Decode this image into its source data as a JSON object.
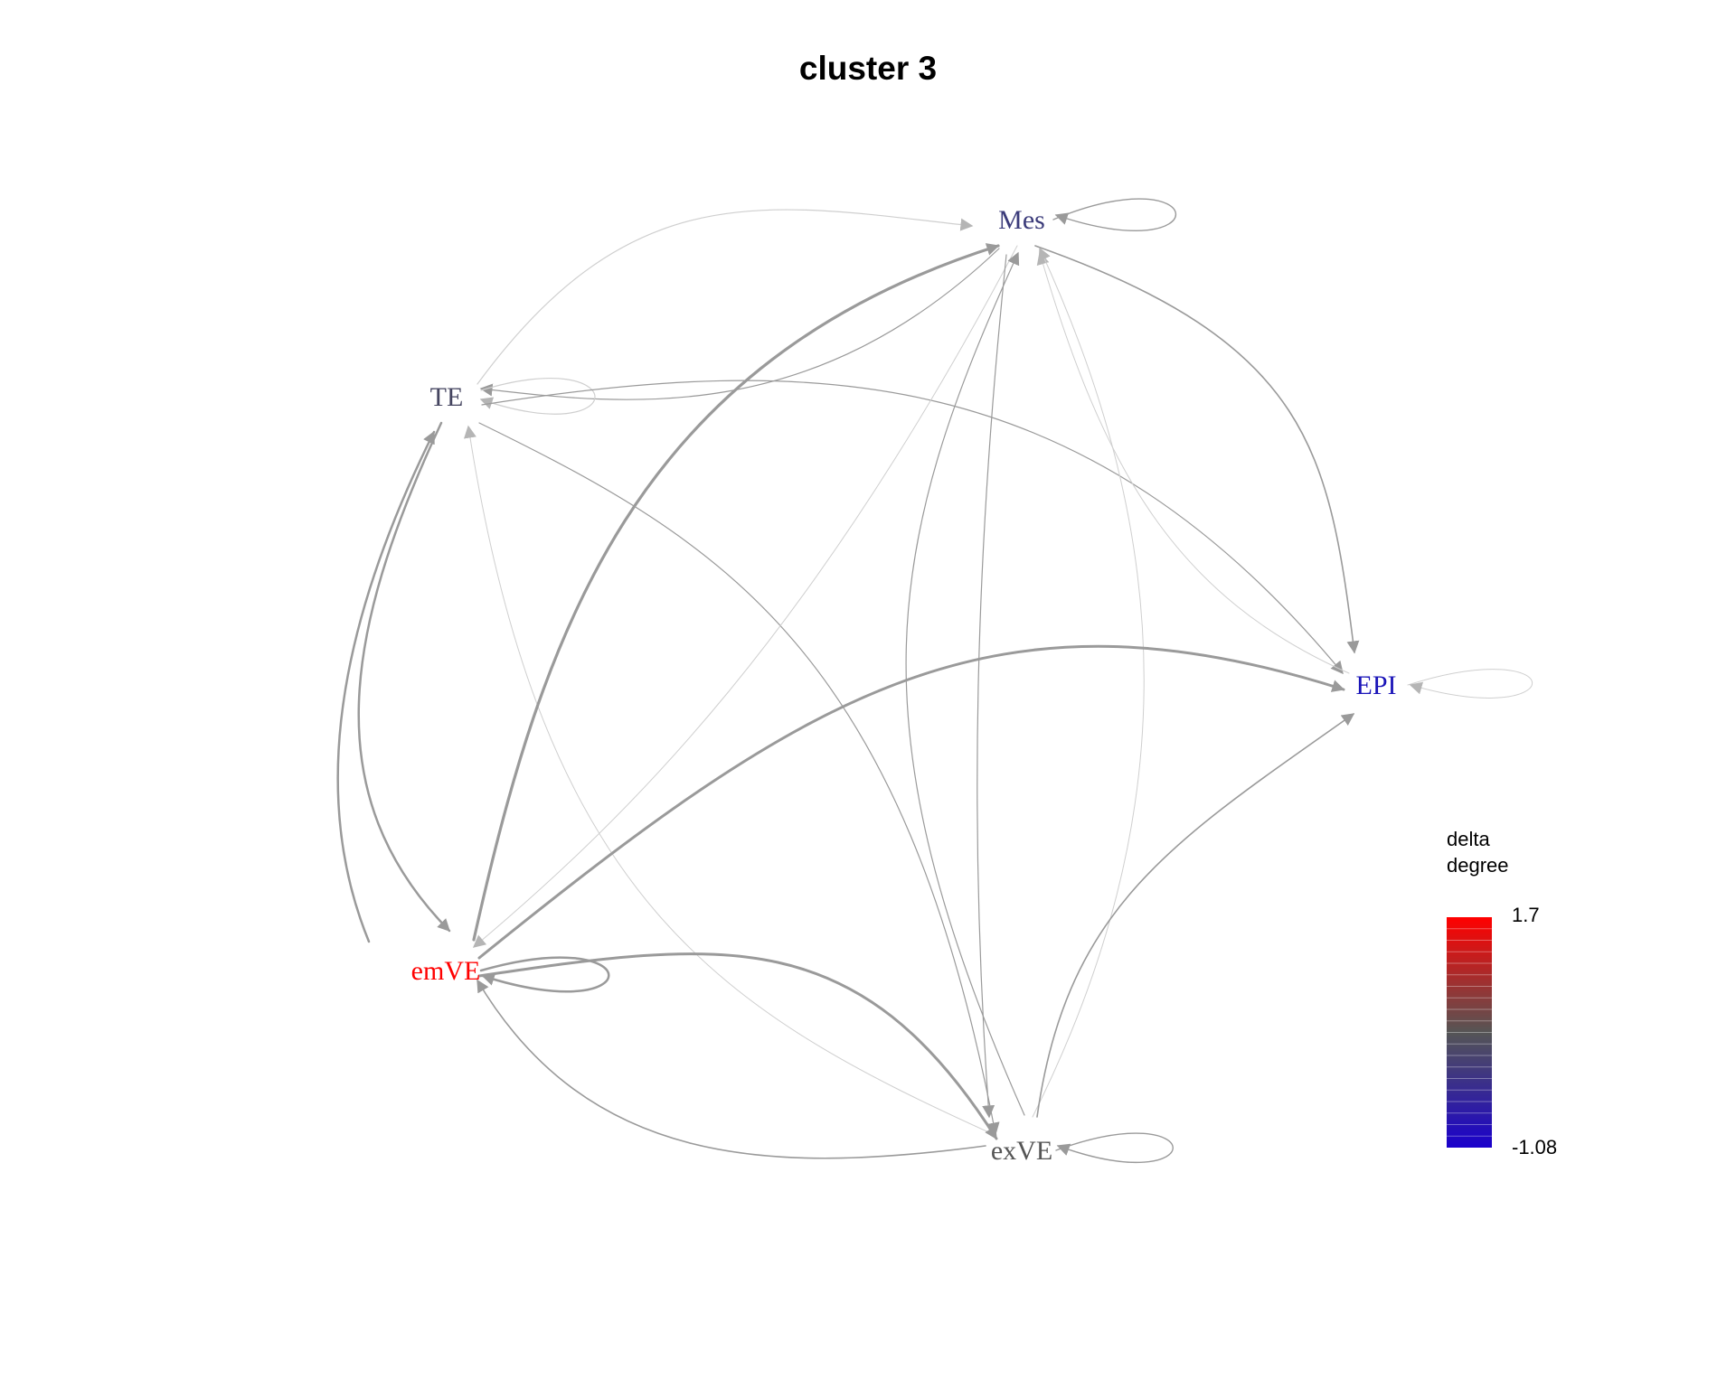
{
  "title": "cluster 3",
  "colors": {
    "edge": "#9a9a9a",
    "edge_light": "#cfcfcf",
    "high": "#ff0000",
    "mid": "#555555",
    "low": "#0000cc"
  },
  "nodes": [
    {
      "id": "Mes",
      "label": "Mes",
      "color": "#3b3b7a"
    },
    {
      "id": "TE",
      "label": "TE",
      "color": "#454560"
    },
    {
      "id": "EPI",
      "label": "EPI",
      "color": "#1a14b8"
    },
    {
      "id": "emVE",
      "label": "emVE",
      "color": "#ff0000"
    },
    {
      "id": "exVE",
      "label": "exVE",
      "color": "#555555"
    }
  ],
  "legend": {
    "title_line1": "delta",
    "title_line2": "degree",
    "max_label": "1.7",
    "min_label": "-1.08"
  }
}
